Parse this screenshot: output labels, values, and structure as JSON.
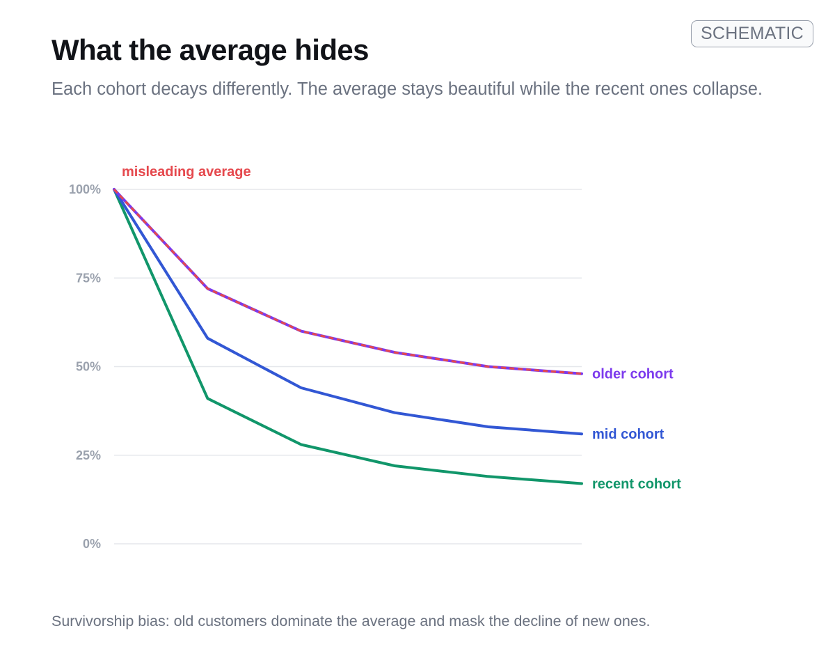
{
  "badge": {
    "label": "SCHEMATIC"
  },
  "header": {
    "title": "What the average hides",
    "subtitle": "Each cohort decays differently. The average stays beautiful while the recent ones collapse."
  },
  "footnote": "Survivorship bias: old customers dominate the average and mask the decline of new ones.",
  "colors": {
    "older": "#7c3aed",
    "mid": "#3257d4",
    "recent": "#11966a",
    "average": "#e5484d",
    "grid": "#e5e7eb",
    "tick": "#9aa1ad"
  },
  "chart_data": {
    "type": "line",
    "x": [
      0,
      1,
      2,
      3,
      4,
      5
    ],
    "ylim": [
      0,
      100
    ],
    "yticks": [
      0,
      25,
      50,
      75,
      100
    ],
    "ytick_labels": [
      "0%",
      "25%",
      "50%",
      "75%",
      "100%"
    ],
    "grid": true,
    "series": [
      {
        "key": "older",
        "name": "older cohort",
        "values": [
          100,
          72,
          60,
          54,
          50,
          48
        ]
      },
      {
        "key": "mid",
        "name": "mid cohort",
        "values": [
          100,
          58,
          44,
          37,
          33,
          31
        ]
      },
      {
        "key": "recent",
        "name": "recent cohort",
        "values": [
          100,
          41,
          28,
          22,
          19,
          17
        ]
      },
      {
        "key": "average",
        "name": "misleading average",
        "style": "dashed",
        "values": [
          100,
          72,
          60,
          54,
          50,
          48
        ]
      }
    ]
  }
}
